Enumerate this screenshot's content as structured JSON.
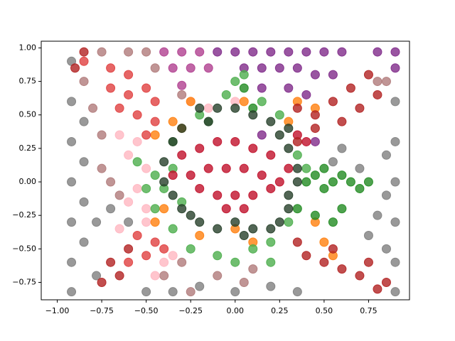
{
  "chart_data": {
    "type": "scatter",
    "xlim": [
      -1.09,
      0.98
    ],
    "ylim": [
      -0.88,
      1.05
    ],
    "xticks": [
      {
        "value": -1.0,
        "label": "−1.00"
      },
      {
        "value": -0.75,
        "label": "−0.75"
      },
      {
        "value": -0.5,
        "label": "−0.50"
      },
      {
        "value": -0.25,
        "label": "−0.25"
      },
      {
        "value": 0,
        "label": "0.00"
      },
      {
        "value": 0.25,
        "label": "0.25"
      },
      {
        "value": 0.5,
        "label": "0.50"
      },
      {
        "value": 0.75,
        "label": "0.75"
      }
    ],
    "yticks": [
      {
        "value": -0.75,
        "label": "−0.75"
      },
      {
        "value": -0.5,
        "label": "−0.50"
      },
      {
        "value": -0.25,
        "label": "−0.25"
      },
      {
        "value": 0,
        "label": "0.00"
      },
      {
        "value": 0.25,
        "label": "0.25"
      },
      {
        "value": 0.5,
        "label": "0.50"
      },
      {
        "value": 0.75,
        "label": "0.75"
      },
      {
        "value": 1.0,
        "label": "1.00"
      }
    ],
    "series": [
      {
        "color": "#808080",
        "x": [
          -0.92,
          -0.92,
          -0.92,
          -0.92,
          -0.92,
          -0.92,
          -0.92,
          -0.85,
          -0.85,
          -0.85,
          -0.85,
          -0.78,
          -0.78,
          -0.7,
          -0.6,
          -0.5,
          -0.35,
          -0.2,
          0.0,
          0.2,
          0.35,
          0.9,
          0.9,
          0.9,
          0.9,
          0.9,
          0.9,
          0.85,
          0.85,
          0.8,
          0.7,
          0.6,
          0.55,
          0.75,
          0.85
        ],
        "y": [
          0.9,
          0.6,
          0.3,
          0.0,
          -0.3,
          -0.6,
          -0.82,
          0.45,
          0.15,
          -0.15,
          -0.45,
          -0.3,
          -0.7,
          -0.2,
          -0.3,
          -0.82,
          -0.82,
          -0.78,
          -0.82,
          -0.78,
          -0.82,
          0.6,
          0.3,
          0.0,
          -0.3,
          -0.6,
          -0.82,
          0.2,
          -0.1,
          -0.25,
          0.1,
          0.25,
          0.15,
          -0.4,
          -0.5
        ]
      },
      {
        "color": "#7f2a8a",
        "x": [
          -0.1,
          0.0,
          0.1,
          0.2,
          0.3,
          0.4,
          0.5,
          0.6,
          0.8,
          0.9,
          0.05,
          0.15,
          0.25,
          0.35,
          0.45,
          0.55,
          0.9,
          0.15,
          0.3,
          0.4,
          0.45,
          0.15
        ],
        "y": [
          0.97,
          0.97,
          0.97,
          0.97,
          0.97,
          0.97,
          0.97,
          0.97,
          0.97,
          0.97,
          0.85,
          0.85,
          0.85,
          0.85,
          0.8,
          0.8,
          0.85,
          0.7,
          0.7,
          0.65,
          0.3,
          0.35
        ]
      },
      {
        "color": "#b04090",
        "x": [
          -0.4,
          -0.3,
          -0.2,
          -0.35,
          -0.25,
          -0.15,
          -0.3
        ],
        "y": [
          0.97,
          0.97,
          0.97,
          0.85,
          0.85,
          0.85,
          0.72
        ]
      },
      {
        "color": "#b07a7a",
        "x": [
          -0.85,
          -0.75,
          -0.6,
          -0.5,
          -0.45,
          -0.75,
          -0.75,
          -0.7,
          -0.65,
          -0.8,
          -0.4,
          -0.3,
          -0.25,
          -0.1,
          0.05,
          0.1,
          0.85,
          0.8,
          -0.3
        ],
        "y": [
          0.75,
          0.97,
          0.97,
          0.97,
          0.85,
          0.35,
          0.1,
          0.0,
          -0.1,
          0.55,
          -0.7,
          -0.6,
          -0.82,
          -0.7,
          -0.75,
          -0.65,
          0.75,
          0.75,
          0.65
        ]
      },
      {
        "color": "#ffb6c1",
        "x": [
          -0.65,
          -0.6,
          -0.55,
          -0.5,
          -0.55,
          -0.6,
          -0.5,
          -0.65,
          -0.5,
          -0.4,
          -0.45,
          -0.35,
          0.0,
          -0.25,
          -0.15
        ],
        "y": [
          0.35,
          0.2,
          0.3,
          0.1,
          -0.05,
          -0.15,
          -0.2,
          -0.35,
          -0.3,
          -0.6,
          -0.7,
          -0.55,
          0.6,
          0.6,
          0.55
        ]
      },
      {
        "color": "#ff7f0e",
        "x": [
          -0.45,
          -0.35,
          -0.25,
          -0.3,
          0.35,
          0.45,
          0.3,
          -0.45,
          -0.4,
          -0.2,
          0.0,
          0.1,
          0.45,
          0.5,
          0.55,
          0.05
        ],
        "y": [
          0.35,
          0.45,
          0.6,
          0.4,
          0.6,
          0.55,
          0.45,
          -0.3,
          -0.2,
          -0.4,
          -0.35,
          -0.45,
          -0.3,
          -0.45,
          -0.55,
          0.6
        ]
      },
      {
        "color": "#4cae4c",
        "x": [
          -0.55,
          -0.45,
          -0.35,
          -0.4,
          -0.45,
          -0.3,
          -0.35,
          -0.25,
          -0.1,
          0.0,
          0.1,
          0.2,
          0.2,
          0.0,
          0.05,
          -0.05,
          0.15,
          0.25,
          -0.15,
          -0.35,
          0.35,
          0.4,
          0.3,
          -0.5,
          -0.2
        ],
        "y": [
          0.15,
          0.05,
          0.1,
          -0.05,
          -0.2,
          -0.15,
          -0.35,
          -0.5,
          -0.55,
          -0.6,
          -0.5,
          -0.45,
          -0.6,
          0.75,
          0.8,
          0.65,
          0.6,
          0.5,
          0.45,
          0.3,
          0.2,
          0.1,
          -0.3,
          -0.05,
          0.5
        ]
      },
      {
        "color": "#228b22",
        "x": [
          0.4,
          0.45,
          0.5,
          0.55,
          0.6,
          0.65,
          0.7,
          0.75,
          0.5,
          0.35,
          0.45,
          0.6,
          0.55,
          0.1,
          0.05
        ],
        "y": [
          0.0,
          0.05,
          -0.05,
          0.0,
          0.05,
          0.0,
          -0.05,
          0.0,
          0.1,
          -0.2,
          -0.25,
          -0.2,
          -0.3,
          0.55,
          0.7
        ]
      },
      {
        "color": "#27402a",
        "x": [
          -0.2,
          -0.1,
          0.0,
          0.1,
          0.2,
          0.25,
          0.3,
          0.35,
          0.35,
          0.3,
          0.3,
          0.25,
          0.2,
          0.1,
          0.0,
          -0.1,
          -0.2,
          -0.25,
          -0.3,
          -0.35,
          -0.4,
          -0.4,
          -0.35,
          -0.3,
          0.05,
          -0.15,
          0.3
        ],
        "y": [
          0.55,
          0.55,
          0.55,
          0.5,
          0.45,
          0.35,
          0.25,
          0.1,
          0.0,
          -0.1,
          -0.2,
          -0.3,
          -0.35,
          -0.35,
          -0.3,
          -0.35,
          -0.3,
          -0.25,
          -0.2,
          -0.1,
          0.0,
          0.15,
          0.3,
          0.4,
          -0.4,
          0.45,
          0.4
        ]
      },
      {
        "color": "#c0102a",
        "x": [
          -0.3,
          -0.2,
          -0.1,
          0.0,
          0.1,
          0.2,
          0.3,
          -0.35,
          -0.25,
          -0.15,
          -0.05,
          0.05,
          0.15,
          0.25,
          -0.2,
          -0.1,
          0.0,
          0.1,
          0.2,
          -0.05,
          0.05,
          0.35,
          0.4
        ],
        "y": [
          0.2,
          0.25,
          0.3,
          0.3,
          0.25,
          0.2,
          0.1,
          0.05,
          0.05,
          0.1,
          0.1,
          0.1,
          0.05,
          0.0,
          -0.05,
          -0.1,
          -0.1,
          -0.1,
          -0.05,
          -0.2,
          -0.2,
          0.35,
          0.3
        ]
      },
      {
        "color": "#e04040",
        "x": [
          -0.85,
          -0.7,
          -0.6,
          -0.5,
          -0.45,
          -0.6,
          -0.7,
          -0.55,
          -0.45,
          -0.5,
          -0.65,
          -0.55,
          -0.5,
          -0.45,
          -0.6,
          -0.4
        ],
        "y": [
          0.9,
          0.85,
          0.8,
          0.7,
          0.6,
          0.65,
          0.7,
          0.5,
          0.45,
          0.35,
          0.55,
          -0.4,
          -0.55,
          -0.45,
          -0.6,
          -0.5
        ]
      },
      {
        "color": "#b22222",
        "x": [
          -0.85,
          -0.9,
          0.35,
          0.45,
          0.55,
          0.65,
          0.75,
          0.8,
          0.7,
          0.6,
          0.45,
          0.35,
          -0.7,
          -0.75,
          -0.65,
          -0.6,
          0.4,
          0.5,
          0.6,
          0.7,
          0.8,
          0.85,
          0.55,
          0.35,
          0.75
        ],
        "y": [
          0.97,
          0.85,
          0.55,
          0.5,
          0.6,
          0.7,
          0.8,
          0.65,
          0.55,
          0.45,
          0.4,
          0.3,
          -0.6,
          -0.75,
          -0.7,
          -0.5,
          -0.55,
          -0.6,
          -0.65,
          -0.7,
          -0.8,
          -0.75,
          -0.5,
          -0.45,
          -0.6
        ]
      }
    ]
  }
}
